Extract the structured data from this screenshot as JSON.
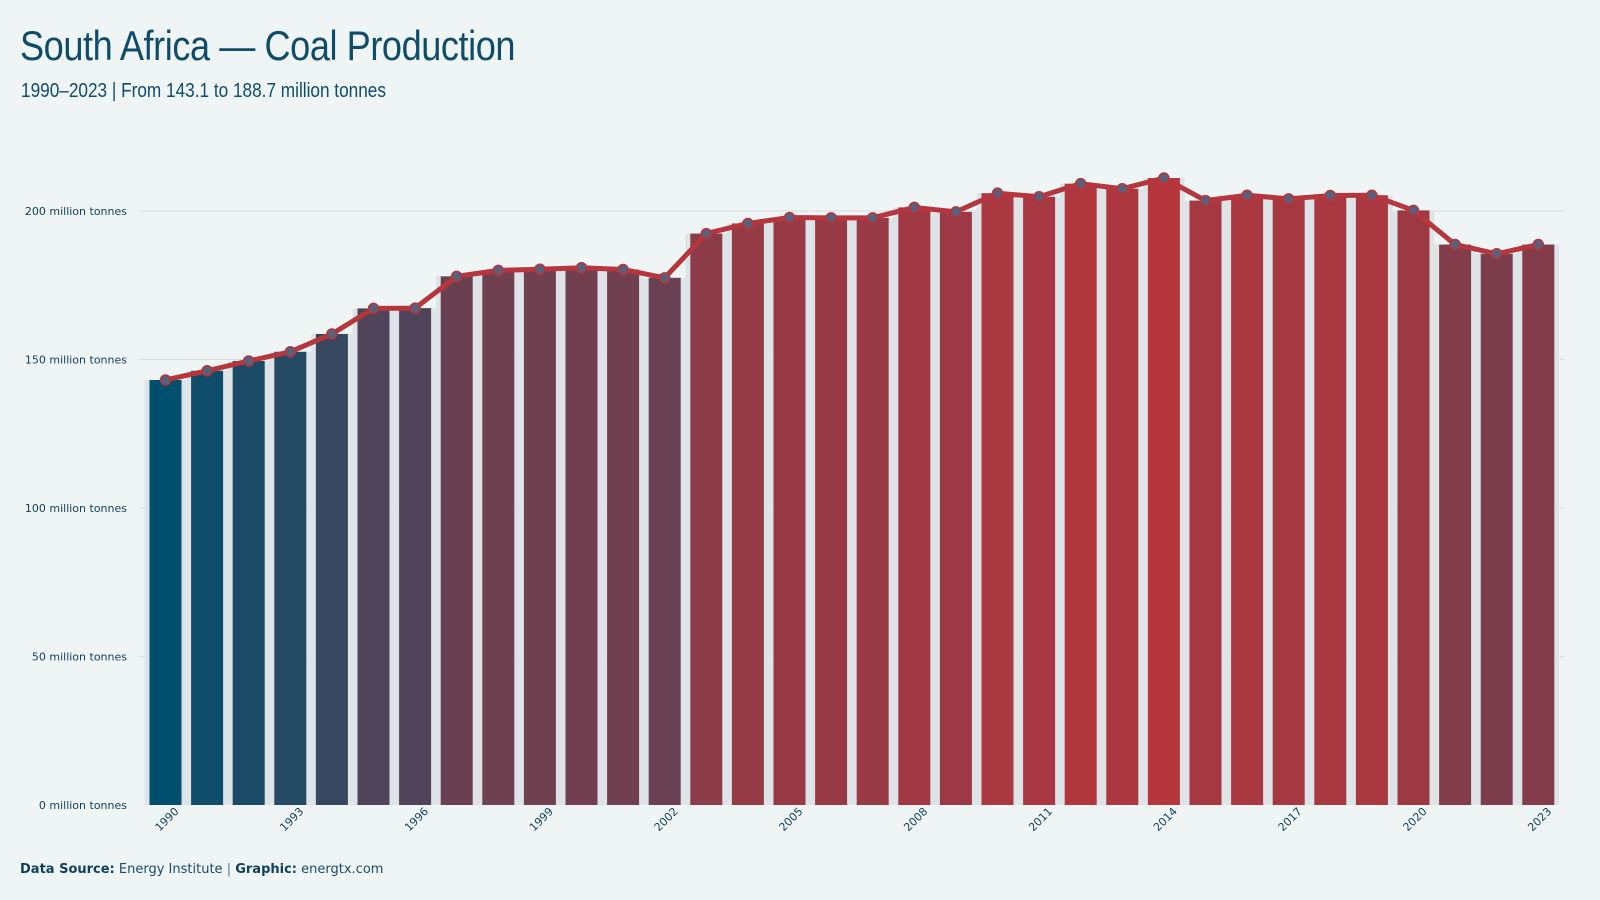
{
  "title": "South Africa — Coal Production",
  "subtitle": "1990–2023 | From 143.1 to 188.7 million tonnes",
  "footer": {
    "source_label": "Data Source:",
    "source_value": "Energy Institute",
    "separator": "|",
    "graphic_label": "Graphic:",
    "graphic_value": "energtx.com"
  },
  "colors": {
    "background": "#eff5f5",
    "line": "#b5363d",
    "bar_low": "#004f6e",
    "bar_high": "#b5363d",
    "marker_fill": "#5a5f7a",
    "text": "#0f4c6a"
  },
  "chart_data": {
    "type": "bar",
    "overlay": "line",
    "x": [
      1990,
      1991,
      1992,
      1993,
      1994,
      1995,
      1996,
      1997,
      1998,
      1999,
      2000,
      2001,
      2002,
      2003,
      2004,
      2005,
      2006,
      2007,
      2008,
      2009,
      2010,
      2011,
      2012,
      2013,
      2014,
      2015,
      2016,
      2017,
      2018,
      2019,
      2020,
      2021,
      2022,
      2023
    ],
    "values": [
      143.1,
      146.2,
      149.5,
      152.6,
      158.6,
      167.2,
      167.3,
      178.0,
      180.0,
      180.4,
      180.9,
      180.3,
      177.5,
      192.4,
      195.8,
      197.8,
      197.7,
      197.7,
      201.2,
      199.7,
      206.0,
      204.8,
      209.2,
      207.5,
      211.1,
      203.5,
      205.3,
      204.1,
      205.2,
      205.3,
      200.2,
      188.7,
      185.6,
      188.7
    ],
    "y_ticks": [
      0,
      50,
      100,
      150,
      200
    ],
    "y_tick_labels": [
      "0 million tonnes",
      "50 million tonnes",
      "100 million tonnes",
      "150 million tonnes",
      "200 million tonnes"
    ],
    "x_tick_labels": [
      "1990",
      "1993",
      "1996",
      "1999",
      "2002",
      "2005",
      "2008",
      "2011",
      "2014",
      "2017",
      "2020",
      "2023"
    ],
    "ylim": [
      0,
      225
    ],
    "grid": "horizontal",
    "legend": "none"
  }
}
